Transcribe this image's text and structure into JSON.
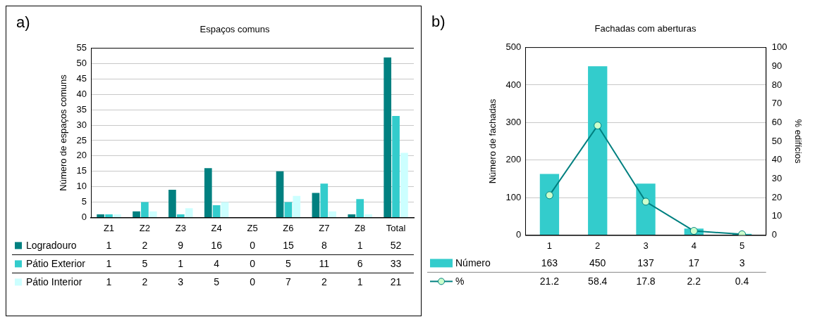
{
  "chart_data": [
    {
      "type": "bar",
      "title": "Espaços comuns",
      "ylabel": "Número de espaços comuns",
      "annotations": [
        "a)"
      ],
      "categories": [
        "Z1",
        "Z2",
        "Z3",
        "Z4",
        "Z5",
        "Z6",
        "Z7",
        "Z8",
        "Total"
      ],
      "series": [
        {
          "name": "Logradouro",
          "color": "#008080",
          "values": [
            1,
            2,
            9,
            16,
            0,
            15,
            8,
            1,
            52
          ]
        },
        {
          "name": "Pátio Exterior",
          "color": "#33cccc",
          "values": [
            1,
            5,
            1,
            4,
            0,
            5,
            11,
            6,
            33
          ]
        },
        {
          "name": "Pátio Interior",
          "color": "#ccffff",
          "values": [
            1,
            2,
            3,
            5,
            0,
            7,
            2,
            1,
            21
          ]
        }
      ],
      "ylim": [
        0,
        55
      ],
      "yticks": [
        0,
        5,
        10,
        15,
        20,
        25,
        30,
        35,
        40,
        45,
        50,
        55
      ],
      "grid": "y",
      "legend": "bottom",
      "data_labels": true
    },
    {
      "type": "bar",
      "title": "Fachadas com aberturas",
      "ylabel": "Número de fachadas",
      "y2label": "% edifícios",
      "annotations": [
        "b)"
      ],
      "categories": [
        "1",
        "2",
        "3",
        "4",
        "5"
      ],
      "series": [
        {
          "name": "Número",
          "color": "#33cccc",
          "values": [
            163,
            450,
            137,
            17,
            3
          ]
        },
        {
          "name": "%",
          "type": "line",
          "axis": "y2",
          "color": "#008080",
          "values": [
            21.2,
            58.4,
            17.8,
            2.2,
            0.4
          ]
        }
      ],
      "ylim": [
        0,
        500
      ],
      "yticks": [
        0,
        100,
        200,
        300,
        400,
        500
      ],
      "y2lim": [
        0,
        100
      ],
      "y2ticks": [
        0,
        10,
        20,
        30,
        40,
        50,
        60,
        70,
        80,
        90,
        100
      ],
      "grid": "y",
      "legend": "bottom",
      "data_labels": true,
      "marker": "circle"
    }
  ]
}
